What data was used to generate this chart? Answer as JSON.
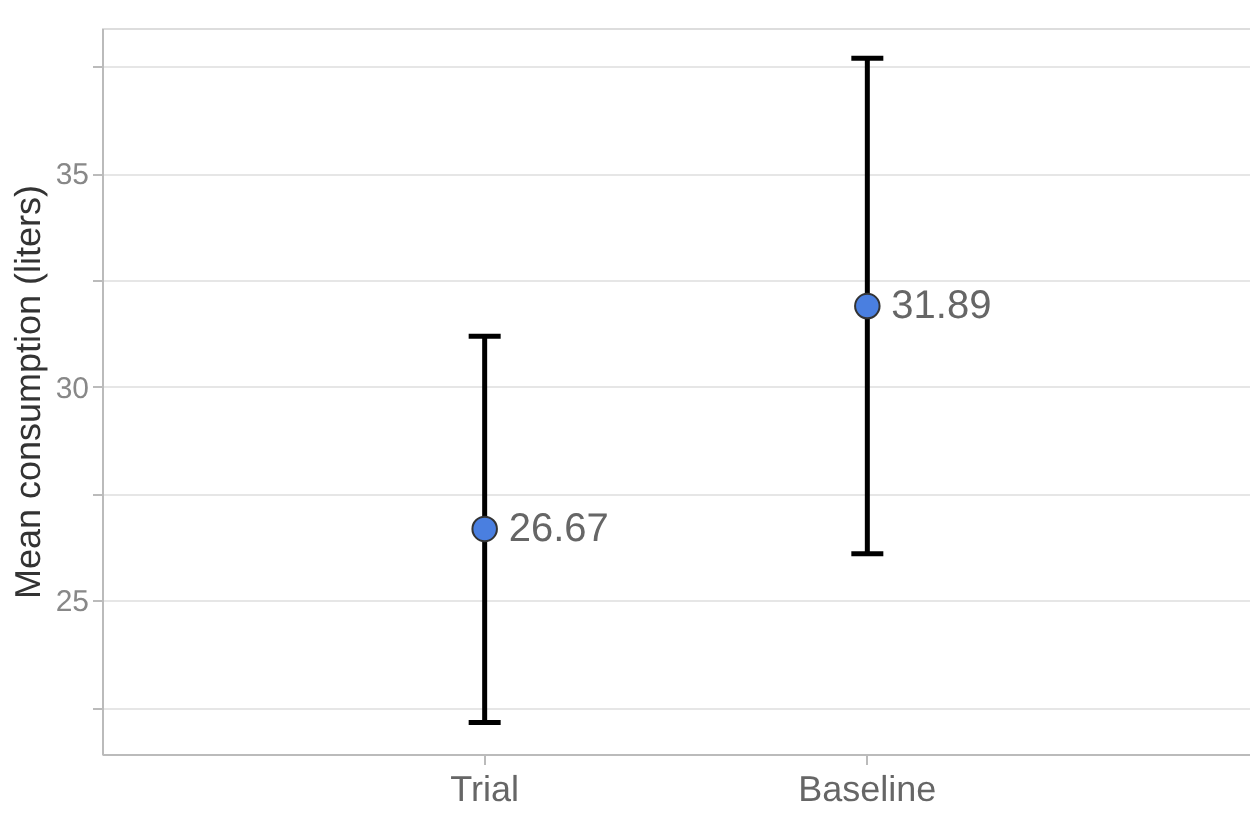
{
  "chart_data": {
    "type": "scatter",
    "ylabel": "Mean consumption (liters)",
    "categories": [
      "Trial",
      "Baseline"
    ],
    "series": [
      {
        "color": "#4a7fe0",
        "values": [
          26.67,
          31.89
        ],
        "errors": [
          [
            22.14,
            31.18
          ],
          [
            26.09,
            37.69
          ]
        ]
      }
    ],
    "data_labels": true,
    "marker": "circle",
    "ylim": [
      21.4,
      38.4
    ],
    "yticks": [
      {
        "value": 22.5,
        "label": null
      },
      25,
      {
        "value": 27.5,
        "label": null
      },
      30,
      {
        "value": 32.5,
        "label": null
      },
      35,
      {
        "value": 37.5,
        "label": null
      }
    ],
    "grid": "y"
  }
}
